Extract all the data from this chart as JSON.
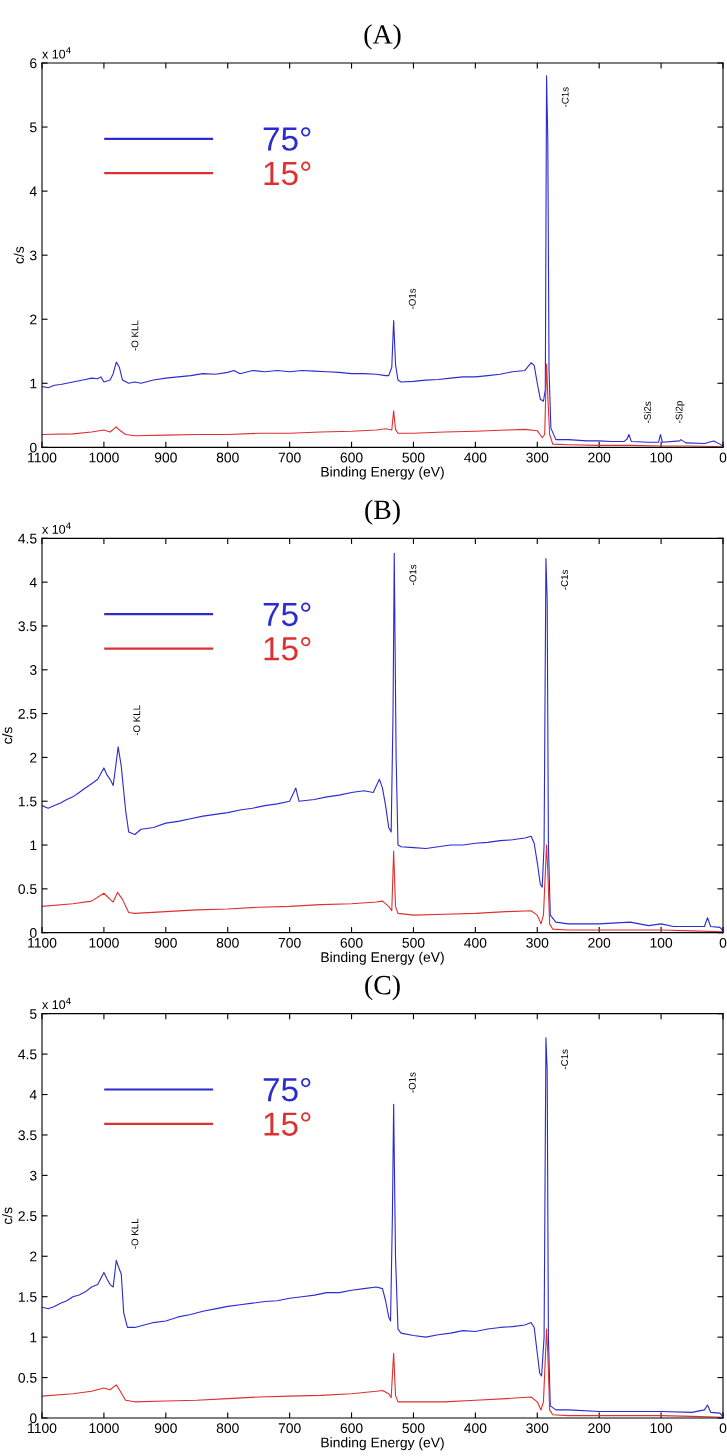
{
  "chart_data": [
    {
      "type": "line",
      "title": "(A)",
      "xlabel": "Binding Energy (eV)",
      "ylabel": "c/s",
      "xlim": [
        1100,
        0
      ],
      "xticks": [
        1100,
        1000,
        900,
        800,
        700,
        600,
        500,
        400,
        300,
        200,
        100,
        0
      ],
      "ylim": [
        0,
        6
      ],
      "yticks": [
        0,
        1,
        2,
        3,
        4,
        5,
        6
      ],
      "legend": "top left",
      "annotations": [
        "x 10$^{4}$",
        {
          "text": "-O KLL",
          "x": 980,
          "y": 1.33
        },
        {
          "text": "-O1s",
          "x": 532,
          "y": 1.98
        },
        {
          "text": "-C1s",
          "x": 285,
          "y": 5.8
        },
        {
          "text": "-Si2s",
          "x": 152,
          "y": 0.2
        },
        {
          "text": "-Si2p",
          "x": 101,
          "y": 0.2
        }
      ],
      "series": [
        {
          "name": "75°",
          "color": "#2b2bd0",
          "x": [
            1100,
            1090,
            1080,
            1070,
            1060,
            1050,
            1040,
            1030,
            1020,
            1010,
            1005,
            1000,
            990,
            985,
            980,
            975,
            970,
            960,
            950,
            940,
            920,
            900,
            880,
            860,
            840,
            820,
            800,
            790,
            780,
            760,
            740,
            720,
            700,
            680,
            660,
            640,
            620,
            600,
            580,
            560,
            545,
            540,
            535,
            532,
            529,
            525,
            520,
            500,
            480,
            460,
            440,
            420,
            400,
            380,
            360,
            340,
            320,
            310,
            305,
            300,
            295,
            290,
            287,
            285,
            283,
            281,
            278,
            270,
            250,
            220,
            200,
            180,
            160,
            155,
            152,
            148,
            120,
            104,
            101,
            98,
            70,
            68,
            60,
            30,
            15,
            5,
            0
          ],
          "values": [
            0.95,
            0.93,
            0.97,
            0.98,
            1.0,
            1.02,
            1.04,
            1.06,
            1.08,
            1.07,
            1.1,
            1.02,
            1.05,
            1.15,
            1.33,
            1.25,
            1.05,
            1.0,
            1.02,
            1.0,
            1.05,
            1.08,
            1.1,
            1.12,
            1.15,
            1.14,
            1.17,
            1.2,
            1.15,
            1.2,
            1.18,
            1.2,
            1.18,
            1.2,
            1.19,
            1.18,
            1.17,
            1.15,
            1.15,
            1.14,
            1.12,
            1.12,
            1.25,
            1.98,
            1.3,
            1.05,
            1.02,
            1.03,
            1.05,
            1.06,
            1.08,
            1.1,
            1.1,
            1.12,
            1.14,
            1.18,
            1.2,
            1.32,
            1.28,
            1.0,
            0.75,
            0.72,
            0.9,
            5.8,
            4.8,
            1.2,
            0.3,
            0.12,
            0.12,
            0.1,
            0.1,
            0.09,
            0.09,
            0.13,
            0.2,
            0.09,
            0.08,
            0.08,
            0.2,
            0.08,
            0.1,
            0.12,
            0.07,
            0.06,
            0.1,
            0.05,
            0.02
          ]
        },
        {
          "name": "15°",
          "color": "#dd3030",
          "x": [
            1100,
            1050,
            1020,
            1000,
            990,
            980,
            975,
            965,
            950,
            900,
            850,
            800,
            750,
            700,
            650,
            600,
            560,
            545,
            535,
            532,
            529,
            525,
            500,
            450,
            400,
            350,
            320,
            300,
            292,
            288,
            285,
            283,
            280,
            275,
            250,
            200,
            150,
            100,
            50,
            0
          ],
          "values": [
            0.2,
            0.21,
            0.24,
            0.27,
            0.24,
            0.32,
            0.27,
            0.2,
            0.18,
            0.19,
            0.2,
            0.2,
            0.22,
            0.22,
            0.24,
            0.25,
            0.27,
            0.29,
            0.27,
            0.57,
            0.28,
            0.22,
            0.22,
            0.24,
            0.25,
            0.27,
            0.28,
            0.26,
            0.15,
            0.2,
            1.3,
            0.8,
            0.2,
            0.05,
            0.04,
            0.03,
            0.03,
            0.02,
            0.02,
            0.01
          ]
        }
      ]
    },
    {
      "type": "line",
      "title": "(B)",
      "xlabel": "Binding Energy (eV)",
      "ylabel": "c/s",
      "xlim": [
        1100,
        0
      ],
      "xticks": [
        1100,
        1000,
        900,
        800,
        700,
        600,
        500,
        400,
        300,
        200,
        100,
        0
      ],
      "ylim": [
        0,
        4.5
      ],
      "yticks": [
        0,
        0.5,
        1,
        1.5,
        2,
        2.5,
        3,
        3.5,
        4,
        4.5
      ],
      "legend": "top left",
      "annotations": [
        "x 10$^{4}$",
        {
          "text": "-O KLL",
          "x": 977,
          "y": 2.12
        },
        {
          "text": "-O1s",
          "x": 531,
          "y": 4.33
        },
        {
          "text": "-C1s",
          "x": 286,
          "y": 4.27
        }
      ],
      "series": [
        {
          "name": "75°",
          "color": "#2b2bd0",
          "x": [
            1100,
            1090,
            1080,
            1070,
            1060,
            1050,
            1040,
            1030,
            1020,
            1010,
            1000,
            995,
            990,
            985,
            980,
            977,
            972,
            965,
            960,
            950,
            940,
            920,
            900,
            880,
            860,
            840,
            820,
            800,
            780,
            760,
            740,
            720,
            700,
            690,
            685,
            660,
            640,
            620,
            600,
            580,
            565,
            555,
            550,
            545,
            540,
            536,
            533,
            531,
            528,
            525,
            520,
            500,
            480,
            460,
            440,
            420,
            400,
            380,
            360,
            340,
            320,
            310,
            305,
            300,
            295,
            292,
            289,
            286,
            284,
            282,
            279,
            270,
            250,
            200,
            150,
            120,
            100,
            80,
            30,
            25,
            20,
            5,
            0
          ],
          "values": [
            1.45,
            1.42,
            1.45,
            1.48,
            1.52,
            1.55,
            1.6,
            1.65,
            1.7,
            1.75,
            1.88,
            1.8,
            1.75,
            1.68,
            1.95,
            2.12,
            1.9,
            1.4,
            1.15,
            1.12,
            1.18,
            1.2,
            1.25,
            1.27,
            1.3,
            1.33,
            1.35,
            1.37,
            1.4,
            1.42,
            1.45,
            1.47,
            1.5,
            1.65,
            1.5,
            1.52,
            1.55,
            1.57,
            1.6,
            1.62,
            1.6,
            1.75,
            1.65,
            1.45,
            1.2,
            1.15,
            2.5,
            4.33,
            2.0,
            1.0,
            0.98,
            0.97,
            0.96,
            0.98,
            1.0,
            1.0,
            1.02,
            1.03,
            1.05,
            1.06,
            1.08,
            1.1,
            1.02,
            0.8,
            0.55,
            0.52,
            1.0,
            4.27,
            3.8,
            1.0,
            0.2,
            0.12,
            0.1,
            0.1,
            0.12,
            0.08,
            0.1,
            0.07,
            0.07,
            0.17,
            0.07,
            0.06,
            0.02
          ]
        },
        {
          "name": "15°",
          "color": "#dd3030",
          "x": [
            1100,
            1050,
            1020,
            1000,
            990,
            985,
            978,
            970,
            960,
            950,
            900,
            850,
            800,
            750,
            700,
            650,
            600,
            560,
            550,
            540,
            535,
            532,
            529,
            525,
            500,
            450,
            400,
            350,
            310,
            300,
            294,
            290,
            285,
            283,
            280,
            275,
            250,
            200,
            100,
            50,
            0
          ],
          "values": [
            0.3,
            0.33,
            0.36,
            0.45,
            0.38,
            0.35,
            0.46,
            0.38,
            0.23,
            0.22,
            0.24,
            0.26,
            0.27,
            0.29,
            0.3,
            0.32,
            0.33,
            0.35,
            0.36,
            0.3,
            0.25,
            0.93,
            0.3,
            0.22,
            0.2,
            0.21,
            0.22,
            0.24,
            0.25,
            0.2,
            0.1,
            0.2,
            1.0,
            0.7,
            0.1,
            0.04,
            0.03,
            0.03,
            0.03,
            0.02,
            0.01
          ]
        }
      ]
    },
    {
      "type": "line",
      "title": "(C)",
      "xlabel": "Binding Energy (eV)",
      "ylabel": "c/s",
      "xlim": [
        1100,
        0
      ],
      "xticks": [
        1100,
        1000,
        900,
        800,
        700,
        600,
        500,
        400,
        300,
        200,
        100,
        0
      ],
      "ylim": [
        0,
        5
      ],
      "yticks": [
        0,
        0.5,
        1,
        1.5,
        2,
        2.5,
        3,
        3.5,
        4,
        4.5,
        5
      ],
      "legend": "top left",
      "annotations": [
        "x 10$^{4}$",
        {
          "text": "-O KLL",
          "x": 980,
          "y": 1.95
        },
        {
          "text": "-O1s",
          "x": 532,
          "y": 3.88
        },
        {
          "text": "-C1s",
          "x": 286,
          "y": 4.7
        }
      ],
      "series": [
        {
          "name": "75°",
          "color": "#2b2bd0",
          "x": [
            1100,
            1090,
            1080,
            1070,
            1060,
            1050,
            1040,
            1030,
            1020,
            1010,
            1000,
            995,
            990,
            985,
            980,
            977,
            972,
            968,
            962,
            950,
            920,
            900,
            880,
            860,
            840,
            820,
            800,
            780,
            760,
            740,
            720,
            700,
            680,
            660,
            640,
            620,
            600,
            580,
            560,
            550,
            545,
            540,
            537,
            534,
            532,
            529,
            525,
            520,
            500,
            480,
            460,
            440,
            420,
            400,
            380,
            360,
            340,
            320,
            310,
            305,
            300,
            296,
            293,
            289,
            286,
            284,
            282,
            279,
            270,
            250,
            200,
            150,
            100,
            50,
            30,
            25,
            20,
            5,
            0
          ],
          "values": [
            1.37,
            1.35,
            1.38,
            1.42,
            1.45,
            1.5,
            1.52,
            1.56,
            1.62,
            1.65,
            1.8,
            1.72,
            1.65,
            1.62,
            1.95,
            1.88,
            1.78,
            1.3,
            1.12,
            1.12,
            1.18,
            1.2,
            1.25,
            1.28,
            1.32,
            1.35,
            1.38,
            1.4,
            1.42,
            1.44,
            1.45,
            1.48,
            1.5,
            1.52,
            1.55,
            1.55,
            1.58,
            1.6,
            1.62,
            1.6,
            1.45,
            1.25,
            1.2,
            2.5,
            3.88,
            2.0,
            1.1,
            1.05,
            1.02,
            1.0,
            1.03,
            1.05,
            1.08,
            1.07,
            1.1,
            1.12,
            1.13,
            1.15,
            1.18,
            1.12,
            0.8,
            0.55,
            0.52,
            1.0,
            4.7,
            4.3,
            1.0,
            0.15,
            0.1,
            0.1,
            0.08,
            0.08,
            0.08,
            0.07,
            0.1,
            0.16,
            0.07,
            0.06,
            0.02
          ]
        },
        {
          "name": "15°",
          "color": "#dd3030",
          "x": [
            1100,
            1050,
            1020,
            1000,
            990,
            980,
            975,
            965,
            950,
            900,
            850,
            800,
            750,
            700,
            650,
            600,
            560,
            550,
            540,
            536,
            532,
            529,
            525,
            500,
            450,
            400,
            350,
            310,
            300,
            294,
            290,
            285,
            283,
            280,
            275,
            250,
            200,
            100,
            50,
            0
          ],
          "values": [
            0.27,
            0.3,
            0.33,
            0.37,
            0.35,
            0.41,
            0.35,
            0.22,
            0.2,
            0.21,
            0.22,
            0.24,
            0.26,
            0.27,
            0.28,
            0.3,
            0.33,
            0.34,
            0.3,
            0.25,
            0.8,
            0.28,
            0.2,
            0.2,
            0.2,
            0.22,
            0.24,
            0.26,
            0.2,
            0.1,
            0.2,
            1.1,
            0.8,
            0.1,
            0.04,
            0.03,
            0.03,
            0.03,
            0.02,
            0.01
          ]
        }
      ]
    }
  ]
}
